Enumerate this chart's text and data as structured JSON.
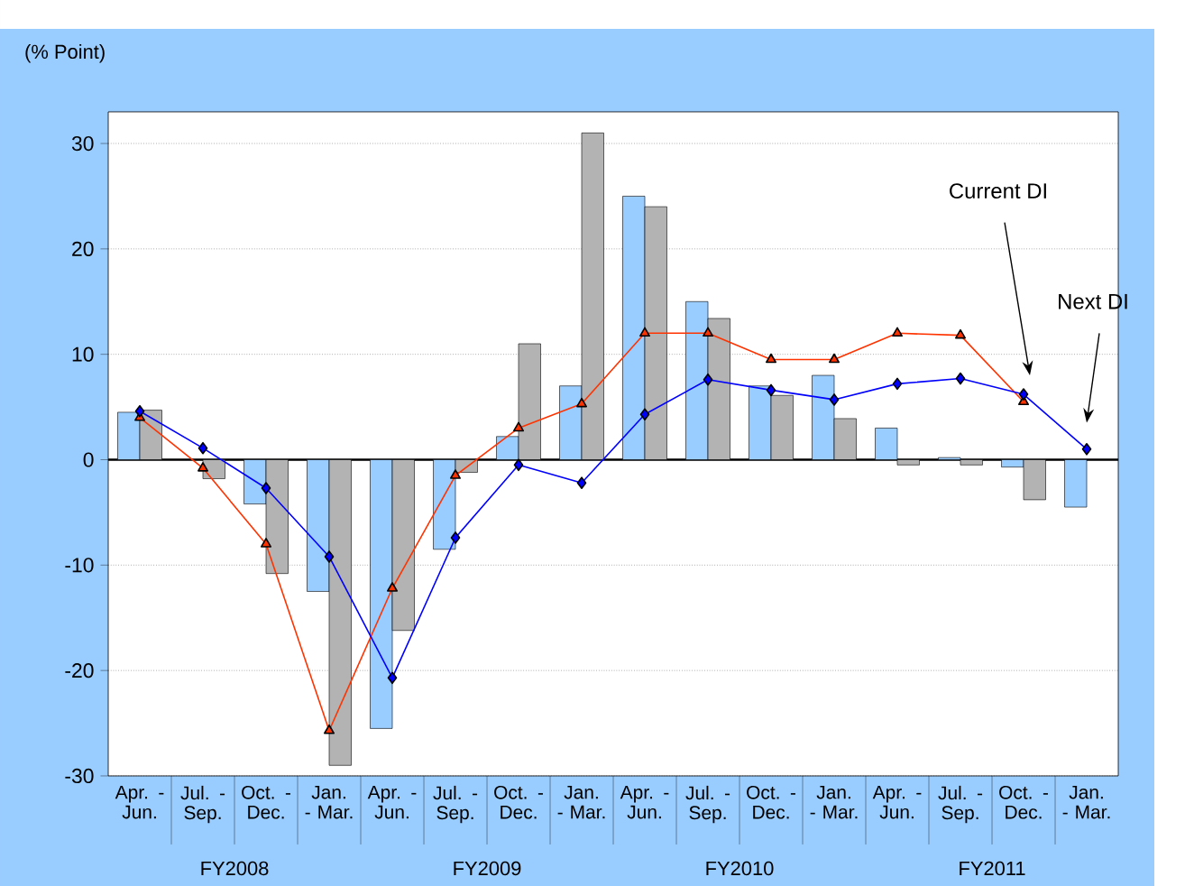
{
  "chart_data": {
    "type": "bar",
    "ylabel": "(% Point)",
    "categories": [
      "Apr. - Jun.",
      "Jul. - Sep.",
      "Oct. - Dec.",
      "Jan. - Mar.",
      "Apr. - Jun.",
      "Jul. - Sep.",
      "Oct. - Dec.",
      "Jan. - Mar.",
      "Apr. - Jun.",
      "Jul. - Sep.",
      "Oct. - Dec.",
      "Jan. - Mar.",
      "Apr. - Jun.",
      "Jul. - Sep.",
      "Oct. - Dec.",
      "Jan. - Mar."
    ],
    "annotations": [
      "FY2008",
      "FY2009",
      "FY2010",
      "FY2011"
    ],
    "series": [
      {
        "color": "#99ccff",
        "values": [
          4.5,
          null,
          -4.2,
          -12.5,
          -25.5,
          -8.5,
          2.2,
          7,
          25,
          15,
          7,
          8,
          3,
          0.2,
          -0.7,
          -4.5
        ]
      },
      {
        "color": "#b3b3b3",
        "values": [
          4.7,
          -1.8,
          -10.8,
          -29,
          -16.2,
          -1.2,
          11,
          31,
          24,
          13.4,
          6.1,
          3.9,
          -0.5,
          -0.5,
          -3.8,
          null
        ]
      },
      {
        "type": "line",
        "name": "Current DI",
        "color": "#ff3300",
        "marker": "triangle",
        "values": [
          4,
          -0.8,
          -8,
          -25.7,
          -12.2,
          -1.5,
          3,
          5.3,
          12,
          12,
          9.5,
          9.5,
          12,
          11.8,
          5.5,
          null
        ]
      },
      {
        "type": "line",
        "name": "Next DI",
        "color": "#0000ff",
        "marker": "diamond",
        "values": [
          4.6,
          1.1,
          -2.7,
          -9.2,
          -20.7,
          -7.4,
          -0.5,
          -2.2,
          4.3,
          7.6,
          6.6,
          5.7,
          7.2,
          7.7,
          6.2,
          1
        ]
      }
    ],
    "ref_lines": [
      {
        "axis": "y",
        "value": 0,
        "color": "#000000"
      }
    ],
    "ylim": [
      -30,
      33
    ],
    "yticks": [
      -30,
      -20,
      -10,
      0,
      10,
      20,
      30
    ],
    "grid": "y"
  }
}
